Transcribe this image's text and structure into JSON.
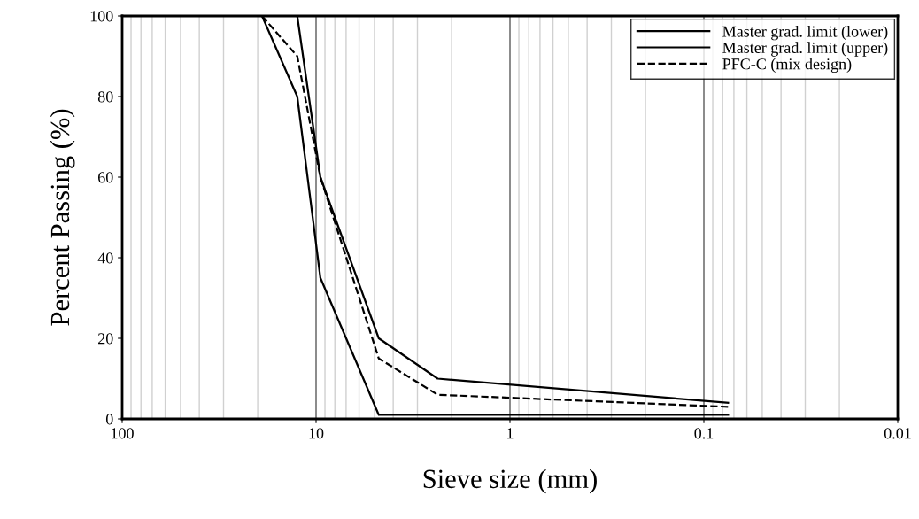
{
  "chart_data": {
    "type": "line",
    "xlabel": "Sieve size (mm)",
    "ylabel": "Percent Passing (%)",
    "log": "x",
    "xlim": [
      100,
      0.01
    ],
    "xticks": [
      100,
      10,
      1,
      0.1,
      0.01
    ],
    "ylim": [
      0,
      100
    ],
    "yticks": [
      0,
      20,
      40,
      60,
      80,
      100
    ],
    "grid": "x",
    "legend": "top right",
    "marker": "none",
    "series": [
      {
        "name": "Master grad. limit (lower)",
        "color": "#000000",
        "line_style": "solid",
        "x": [
          19,
          12.5,
          9.5,
          4.75,
          2.36,
          0.075
        ],
        "values": [
          100,
          80,
          35,
          1,
          1,
          1
        ]
      },
      {
        "name": "Master grad. limit (upper)",
        "color": "#000000",
        "line_style": "solid",
        "x": [
          19,
          12.5,
          9.5,
          4.75,
          2.36,
          0.075
        ],
        "values": [
          100,
          100,
          60,
          20,
          10,
          4
        ]
      },
      {
        "name": "PFC-C (mix design)",
        "color": "#000000",
        "line_style": "dashed",
        "x": [
          19,
          12.5,
          9.5,
          4.75,
          2.36,
          0.075
        ],
        "values": [
          100,
          90,
          60,
          15,
          6,
          3
        ]
      }
    ]
  }
}
